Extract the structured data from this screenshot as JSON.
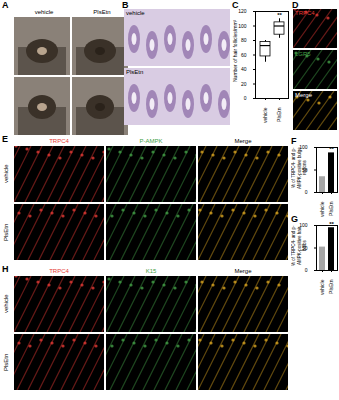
{
  "panels": [
    {
      "label": "A",
      "columns": [
        "vehicle",
        "PlsEtn"
      ]
    },
    {
      "label": "B",
      "rows": [
        "vehicle",
        "PlsEtn"
      ]
    },
    {
      "label": "D",
      "channels": [
        {
          "name": "TRPC4",
          "color": "#e53935"
        },
        {
          "name": "LGR5",
          "color": "#43a047"
        },
        {
          "name": "Merge",
          "color": "#ffffff"
        }
      ]
    },
    {
      "label": "E",
      "rows": [
        "vehicle",
        "PlsEtn"
      ],
      "channels": [
        {
          "name": "TRPC4",
          "color": "#e53935"
        },
        {
          "name": "P-AMPK",
          "color": "#43a047"
        },
        {
          "name": "Merge",
          "color": "#000000"
        }
      ]
    },
    {
      "label": "H",
      "rows": [
        "vehicle",
        "PlsEtn"
      ],
      "channels": [
        {
          "name": "TRPC4",
          "color": "#e53935"
        },
        {
          "name": "K15",
          "color": "#43a047"
        },
        {
          "name": "Merge",
          "color": "#000000"
        }
      ]
    }
  ],
  "chart_labels": [
    "C",
    "F",
    "G"
  ],
  "chart_data": [
    {
      "type": "box",
      "ylabel": "Number of hair follicles/mm²",
      "categories": [
        "vehicle",
        "PlsEtn"
      ],
      "stats": [
        {
          "min": 50,
          "q1": 58,
          "median": 73,
          "q3": 78,
          "max": 80
        },
        {
          "min": 83,
          "q1": 88,
          "median": 100,
          "q3": 105,
          "max": 110
        }
      ],
      "color": "#ffffff",
      "ylim": [
        0,
        120
      ],
      "yticks": [
        0,
        20,
        40,
        60,
        80,
        100,
        120
      ],
      "annotations": [
        {
          "category": "PlsEtn",
          "text": "**"
        }
      ]
    },
    {
      "type": "bar",
      "ylabel": "% of TRPC4- and p-AMPK-positive bulge regions",
      "categories": [
        "vehicle",
        "PlsEtn"
      ],
      "values": [
        35,
        88
      ],
      "colors": [
        "#a6a6a6",
        "#000000"
      ],
      "ylim": [
        0,
        100
      ],
      "yticks": [
        0,
        50,
        100
      ],
      "annotations": [
        {
          "category": "PlsEtn",
          "text": "**"
        }
      ]
    },
    {
      "type": "bar",
      "ylabel": "% of TRPC4- and p-AMPK-positive hair bulbs",
      "categories": [
        "vehicle",
        "PlsEtn"
      ],
      "values": [
        52,
        95
      ],
      "colors": [
        "#a6a6a6",
        "#000000"
      ],
      "ylim": [
        0,
        100
      ],
      "yticks": [
        0,
        50,
        100
      ],
      "annotations": [
        {
          "category": "PlsEtn",
          "text": "**"
        }
      ]
    }
  ]
}
